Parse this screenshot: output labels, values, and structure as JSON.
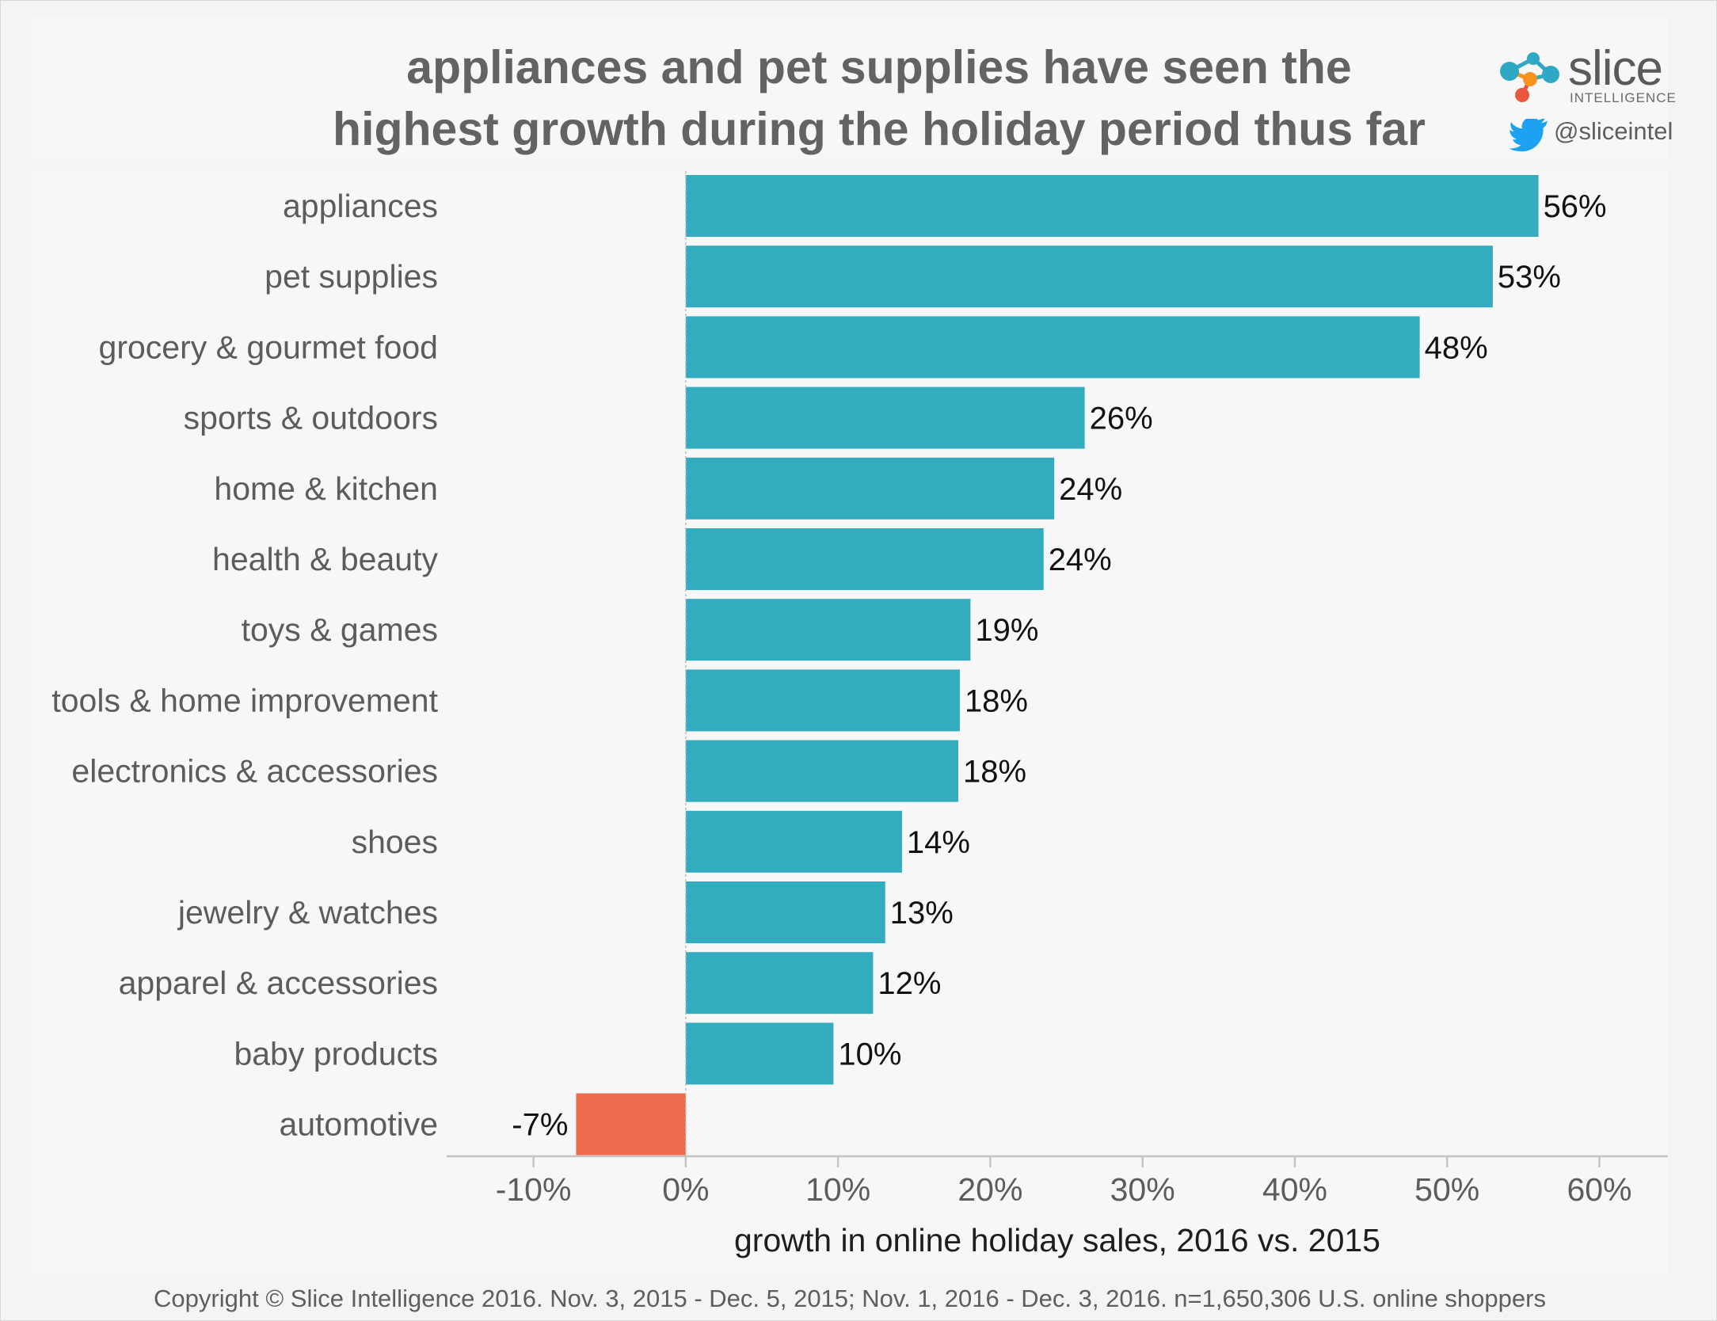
{
  "header": {
    "title_lines": [
      "appliances and pet supplies have seen the",
      "highest growth during the holiday period thus far"
    ],
    "brand": {
      "name": "slice",
      "subtitle": "INTELLIGENCE",
      "twitter_handle": "@sliceintel"
    }
  },
  "colors": {
    "positive": "#33acc0",
    "negative": "#ee6a4f",
    "logo_blue": "#2fa8c6",
    "logo_orange": "#f7941e",
    "logo_red": "#e8573f",
    "twitter": "#1da1f2"
  },
  "chart_data": {
    "type": "bar",
    "orientation": "horizontal",
    "categories": [
      "appliances",
      "pet supplies",
      "grocery & gourmet food",
      "sports & outdoors",
      "home & kitchen",
      "health & beauty",
      "toys & games",
      "tools & home improvement",
      "electronics & accessories",
      "shoes",
      "jewelry & watches",
      "apparel & accessories",
      "baby products",
      "automotive"
    ],
    "values": [
      56,
      53,
      48.2,
      26.2,
      24.2,
      23.5,
      18.7,
      18,
      17.9,
      14.2,
      13.1,
      12.3,
      9.7,
      -7.2
    ],
    "data_labels": [
      "56%",
      "53%",
      "48%",
      "26%",
      "24%",
      "24%",
      "19%",
      "18%",
      "18%",
      "14%",
      "13%",
      "12%",
      "10%",
      "-7%"
    ],
    "xlabel": "growth in online holiday sales, 2016 vs. 2015",
    "ylabel": "",
    "xlim": [
      -15.7,
      64.5
    ],
    "ticks": [
      -10,
      0,
      10,
      20,
      30,
      40,
      50,
      60
    ],
    "tick_labels": [
      "-10%",
      "0%",
      "10%",
      "20%",
      "30%",
      "40%",
      "50%",
      "60%"
    ],
    "grid": false,
    "legend": "none"
  },
  "footer": {
    "text": "Copyright © Slice Intelligence 2016. Nov. 3, 2015 - Dec. 5, 2015; Nov. 1, 2016 - Dec. 3, 2016. n=1,650,306 U.S. online shoppers"
  }
}
